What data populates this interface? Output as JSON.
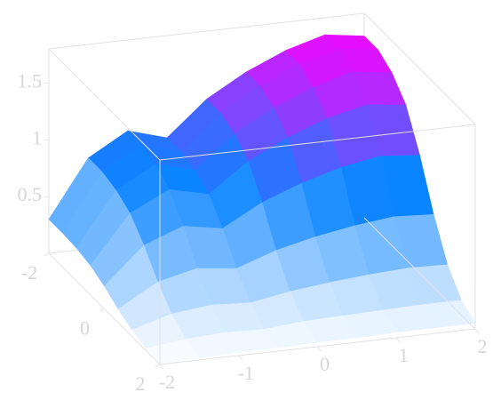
{
  "chart_data": {
    "type": "surface",
    "x": [
      -2,
      -1.5,
      -1,
      -0.5,
      0,
      0.5,
      1,
      1.5,
      2
    ],
    "y": [
      -2,
      -1.5,
      -1,
      -0.5,
      0,
      0.5,
      1,
      1.5,
      2
    ],
    "z": [
      [
        0.3,
        0.8,
        1,
        0.9,
        1.2,
        1.4,
        1.55,
        1.65,
        1.6
      ],
      [
        0.3,
        0.8,
        1,
        0.9,
        1.2,
        1.4,
        1.55,
        1.65,
        1.6
      ],
      [
        0.29,
        0.76,
        0.95,
        0.86,
        1.14,
        1.33,
        1.47,
        1.57,
        1.52
      ],
      [
        0.26,
        0.68,
        0.85,
        0.77,
        1.02,
        1.19,
        1.32,
        1.4,
        1.36
      ],
      [
        0.2,
        0.52,
        0.65,
        0.59,
        0.78,
        0.91,
        1.01,
        1.07,
        1.04
      ],
      [
        0.12,
        0.32,
        0.4,
        0.36,
        0.48,
        0.56,
        0.62,
        0.66,
        0.64
      ],
      [
        0.06,
        0.16,
        0.2,
        0.18,
        0.24,
        0.28,
        0.31,
        0.33,
        0.32
      ],
      [
        0.02,
        0.06,
        0.08,
        0.07,
        0.1,
        0.11,
        0.12,
        0.13,
        0.13
      ],
      [
        0.01,
        0.02,
        0.03,
        0.03,
        0.04,
        0.04,
        0.05,
        0.05,
        0.05
      ]
    ],
    "xlim": [
      -2,
      2
    ],
    "ylim": [
      -2,
      2
    ],
    "zlim": [
      0,
      1.8
    ],
    "xticks": [
      -2,
      -1,
      0,
      1,
      2
    ],
    "yticks": [
      -2,
      0,
      2
    ],
    "zticks": [
      0.5,
      1,
      1.5
    ],
    "colormap": [
      "#ffffff",
      "#0a84ff",
      "#ff00ff"
    ]
  }
}
